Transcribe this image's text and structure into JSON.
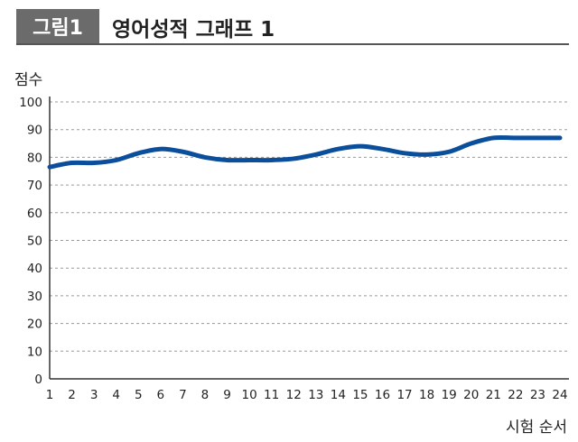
{
  "figure": {
    "badge": "그림1",
    "title": "영어성적 그래프 1"
  },
  "chart_data": {
    "type": "line",
    "title": "영어성적 그래프 1",
    "xlabel": "시험 순서",
    "ylabel": "점수",
    "x": [
      1,
      2,
      3,
      4,
      5,
      6,
      7,
      8,
      9,
      10,
      11,
      12,
      13,
      14,
      15,
      16,
      17,
      18,
      19,
      20,
      21,
      22,
      23,
      24
    ],
    "series": [
      {
        "values": [
          76.5,
          78,
          78,
          79,
          81.5,
          83,
          82,
          80,
          79,
          79,
          79,
          79.5,
          81,
          83,
          84,
          83,
          81.5,
          81,
          82,
          85,
          87,
          87,
          87,
          87
        ]
      }
    ],
    "ylim": [
      0,
      100
    ],
    "yticks": [
      0,
      10,
      20,
      30,
      40,
      50,
      60,
      70,
      80,
      90,
      100
    ],
    "grid": "horizontal-dashed",
    "line_color": "#0b4f9c"
  }
}
